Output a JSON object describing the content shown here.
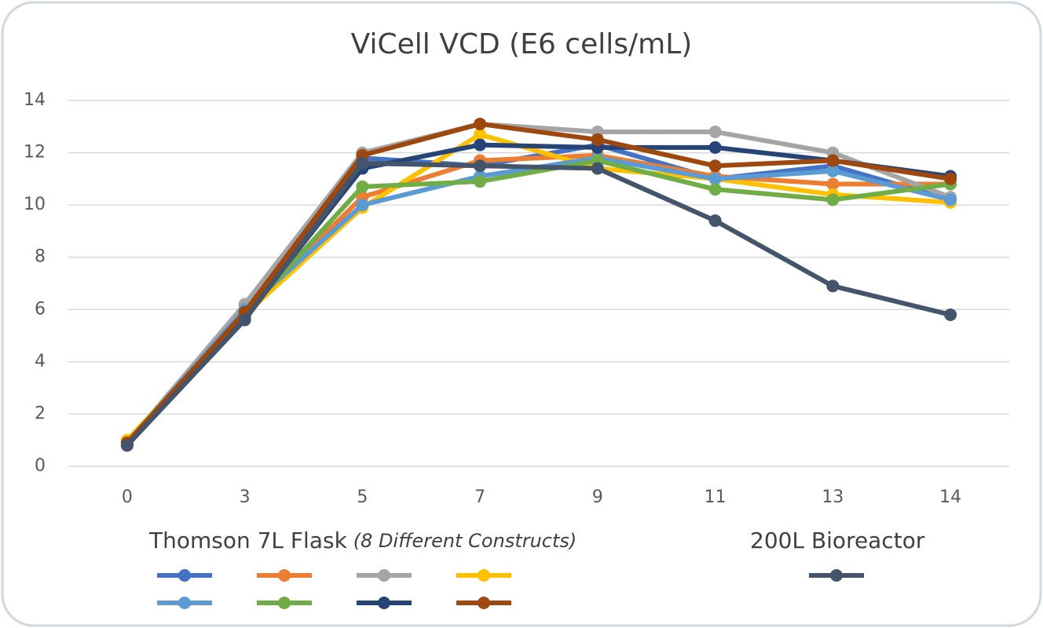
{
  "chart_data": {
    "type": "line",
    "title": "ViCell VCD (E6 cells/mL)",
    "categories": [
      "0",
      "3",
      "5",
      "7",
      "9",
      "11",
      "13",
      "14"
    ],
    "ylim": [
      0,
      14
    ],
    "yticks": [
      0,
      2,
      4,
      6,
      8,
      10,
      12,
      14
    ],
    "grid": true,
    "legend_groups": [
      {
        "title": "Thomson 7L Flask",
        "subtitle": "(8 Different Constructs)"
      },
      {
        "title": "200L Bioreactor"
      }
    ],
    "series": [
      {
        "color": "#4472c4",
        "values": [
          0.9,
          5.9,
          11.8,
          11.5,
          12.3,
          11.0,
          11.5,
          10.2
        ]
      },
      {
        "color": "#ed7d31",
        "values": [
          0.9,
          5.9,
          10.3,
          11.7,
          11.9,
          11.1,
          10.8,
          10.8
        ]
      },
      {
        "color": "#a5a5a5",
        "values": [
          0.9,
          6.2,
          12.0,
          13.1,
          12.8,
          12.8,
          12.0,
          10.3
        ]
      },
      {
        "color": "#ffc000",
        "values": [
          1.0,
          5.8,
          9.9,
          12.7,
          11.4,
          11.0,
          10.4,
          10.1
        ]
      },
      {
        "color": "#5b9bd5",
        "values": [
          0.9,
          6.0,
          10.0,
          11.1,
          11.8,
          11.0,
          11.3,
          10.2
        ]
      },
      {
        "color": "#70ad47",
        "values": [
          0.9,
          5.8,
          10.7,
          10.9,
          11.7,
          10.6,
          10.2,
          10.8
        ]
      },
      {
        "color": "#264478",
        "values": [
          0.8,
          5.7,
          11.4,
          12.3,
          12.2,
          12.2,
          11.7,
          11.1
        ]
      },
      {
        "color": "#9e480e",
        "values": [
          0.9,
          5.9,
          11.9,
          13.1,
          12.5,
          11.5,
          11.7,
          11.0
        ]
      },
      {
        "color": "#44546a",
        "values": [
          0.8,
          5.6,
          11.6,
          11.5,
          11.4,
          9.4,
          6.9,
          5.8
        ]
      }
    ]
  }
}
